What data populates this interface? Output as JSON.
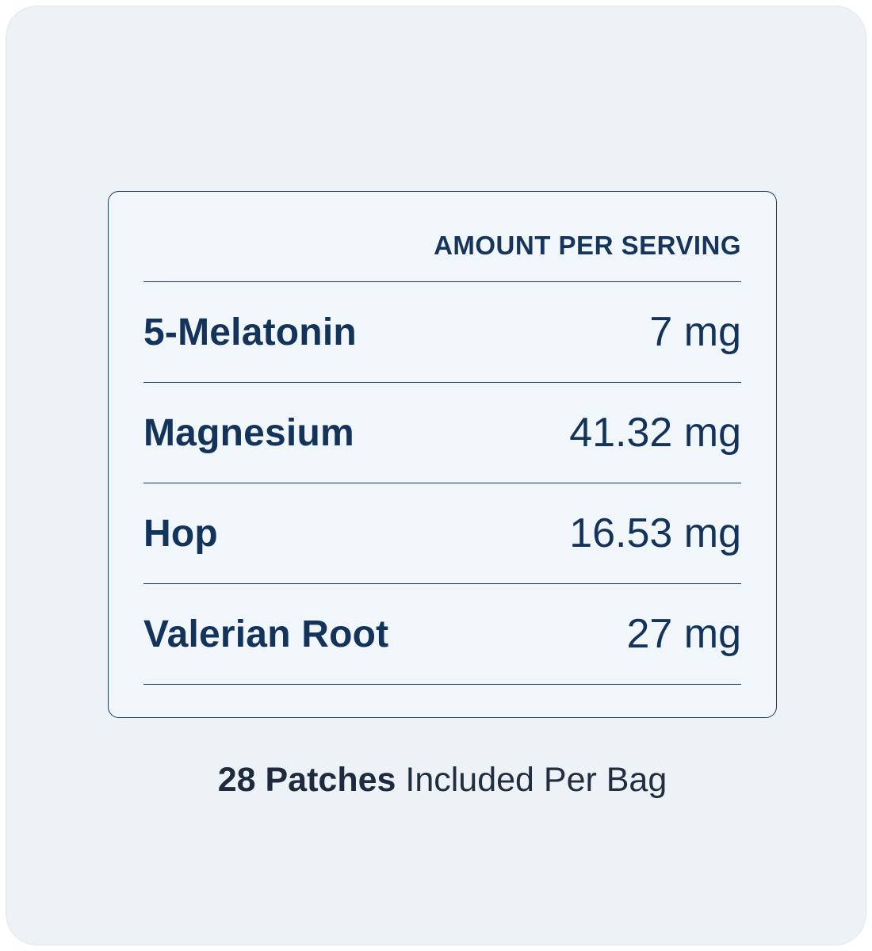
{
  "panel": {
    "header": "AMOUNT PER SERVING",
    "rows": [
      {
        "label": "5-Melatonin",
        "value": "7 mg"
      },
      {
        "label": "Magnesium",
        "value": "41.32 mg"
      },
      {
        "label": "Hop",
        "value": "16.53 mg"
      },
      {
        "label": "Valerian Root",
        "value": "27 mg"
      }
    ]
  },
  "footer": {
    "count": "28 Patches",
    "text": "Included Per Bag"
  },
  "colors": {
    "card_background": "#EDF2F7",
    "panel_background": "#F1F6FA",
    "navy_text": "#14335A",
    "panel_border": "#1A3A5F",
    "footer_text": "#222D40"
  }
}
